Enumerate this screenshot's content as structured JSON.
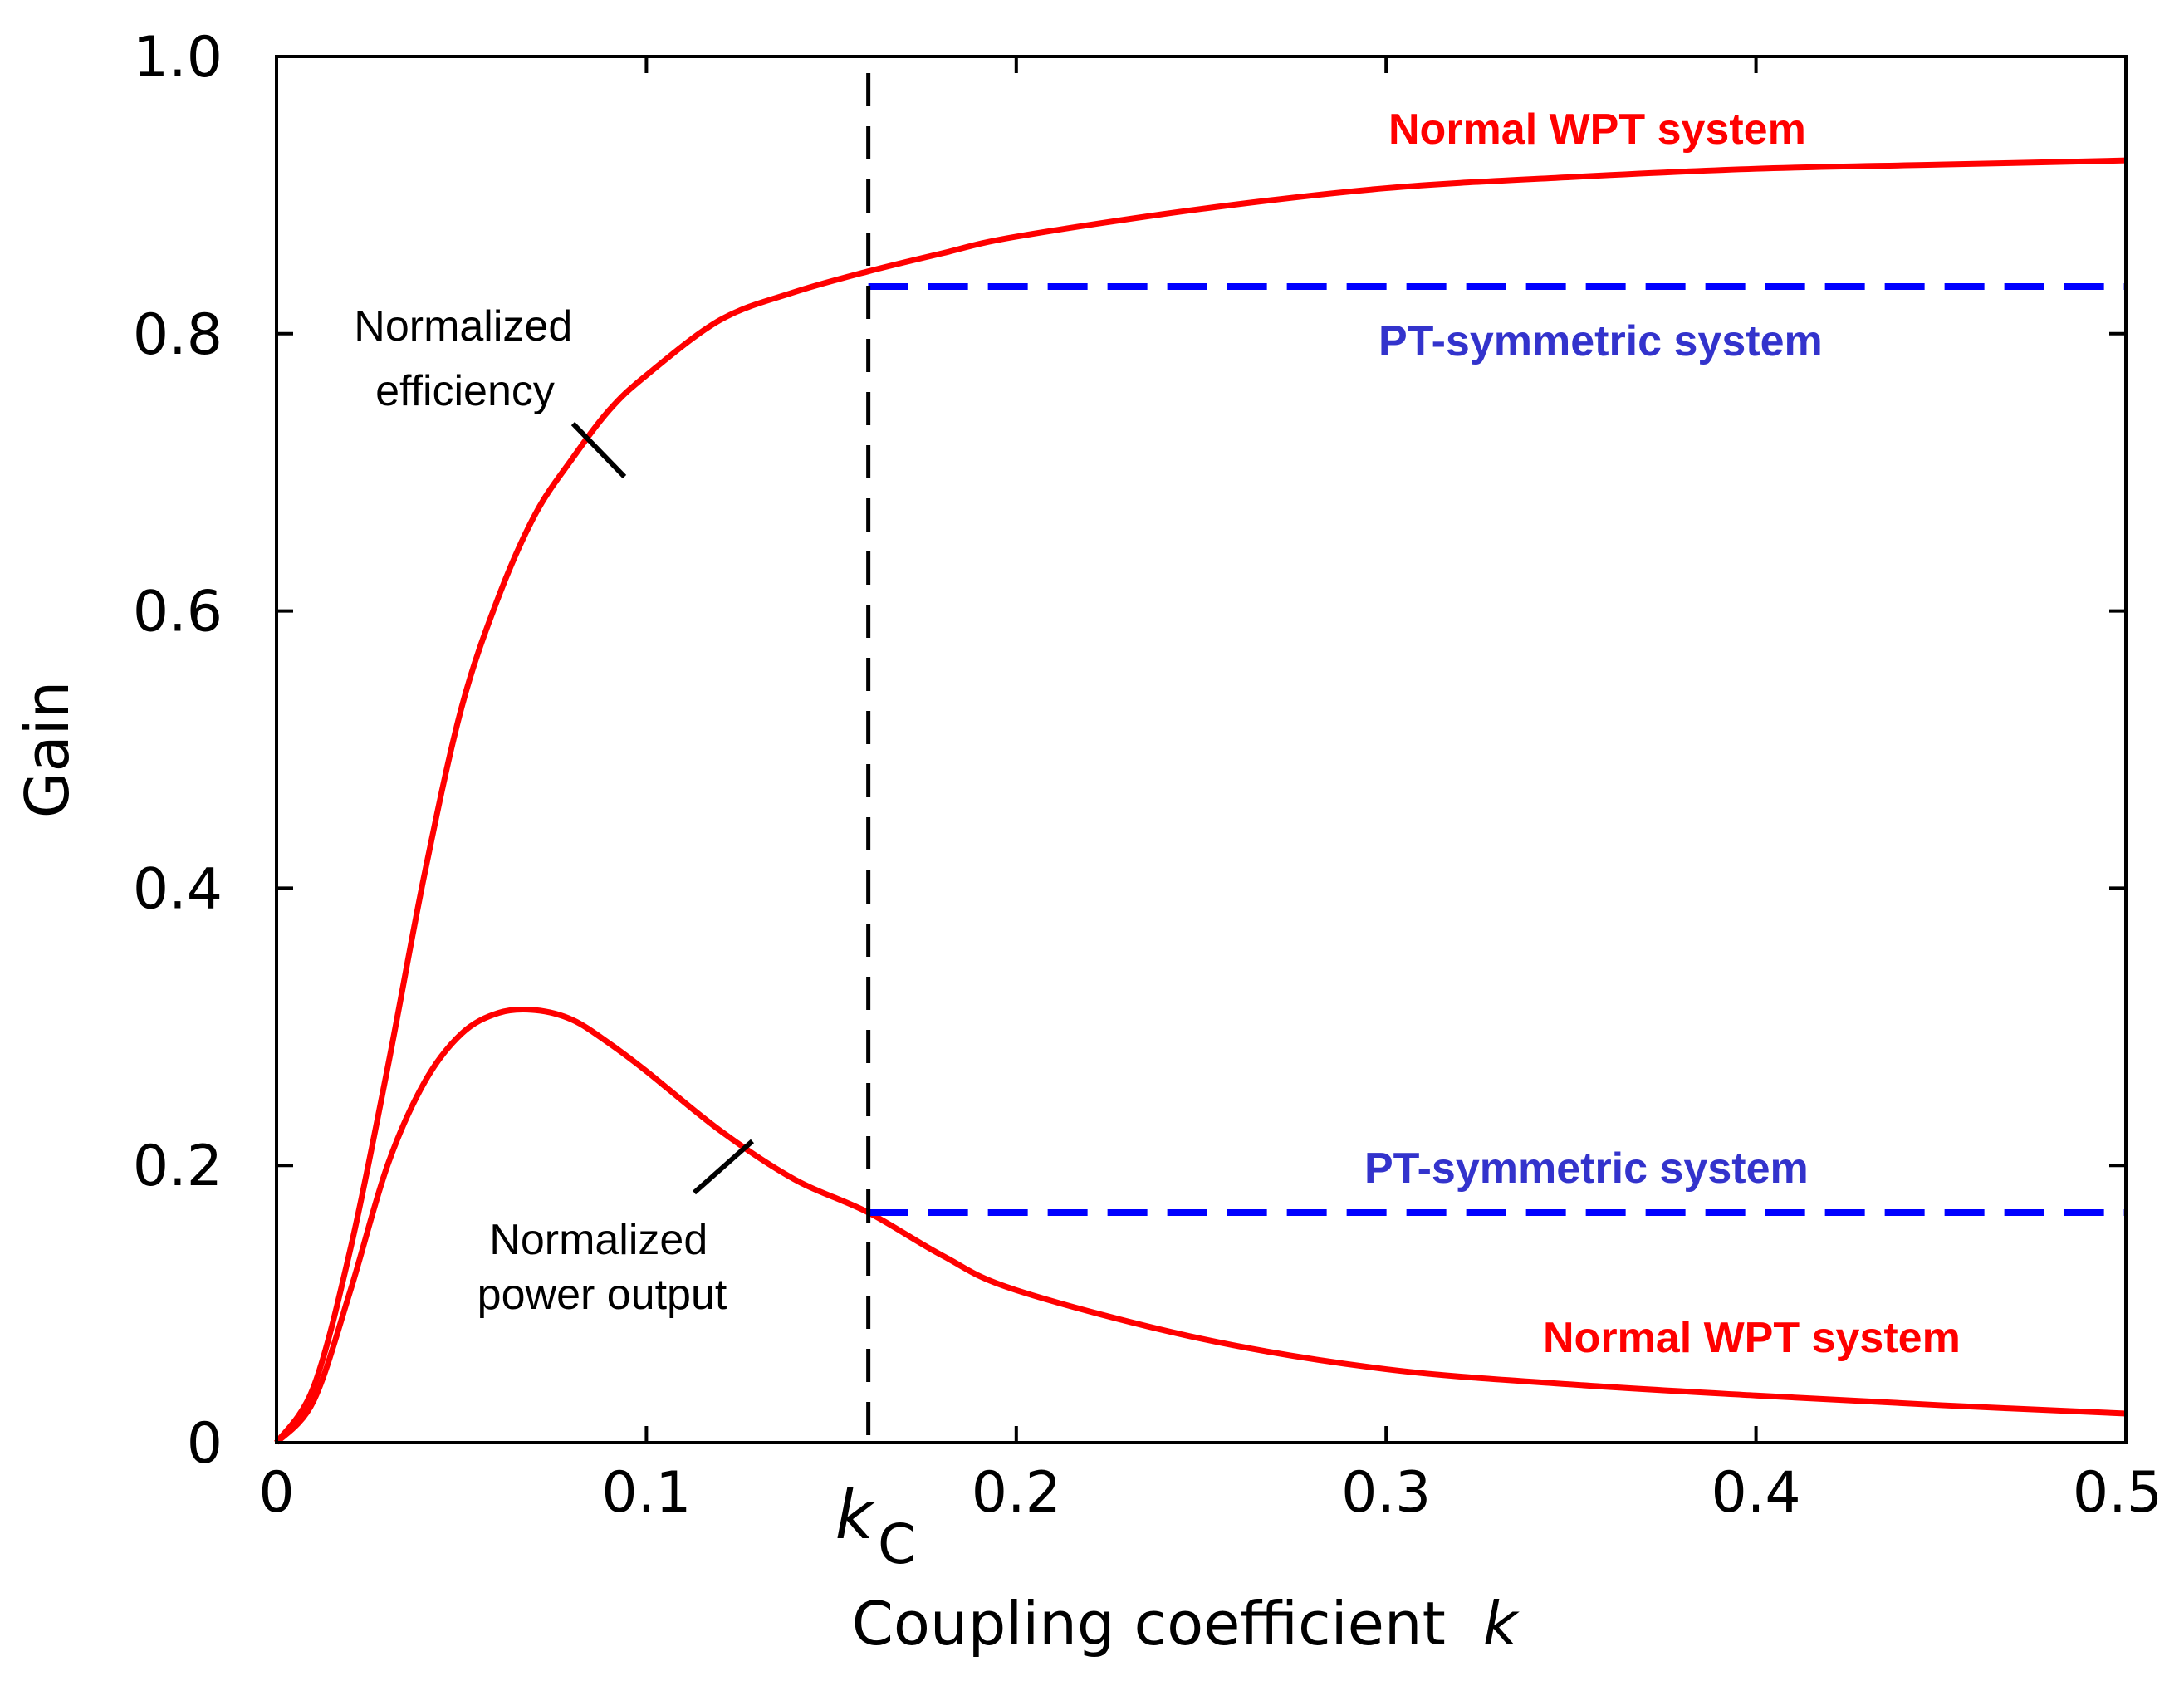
{
  "chart_data": {
    "type": "line",
    "xlabel": "Coupling coefficient",
    "xlabel_var": "k",
    "ylabel": "Gain",
    "xlim": [
      0,
      0.5
    ],
    "ylim": [
      0,
      1.0
    ],
    "x_ticks": [
      0,
      0.1,
      0.2,
      0.3,
      0.4,
      0.5
    ],
    "x_tick_labels": [
      "0",
      "0.1",
      "0.2",
      "0.3",
      "0.4",
      "0.5"
    ],
    "y_ticks": [
      0,
      0.2,
      0.4,
      0.6,
      0.8,
      1.0
    ],
    "y_tick_labels": [
      "0",
      "0.2",
      "0.4",
      "0.6",
      "0.8",
      "1.0"
    ],
    "grid": false,
    "critical_coupling": {
      "value": 0.16,
      "label_main": "k",
      "label_sub": "C",
      "style": "dashed",
      "color": "#000000"
    },
    "series": [
      {
        "color": "#ff0000",
        "style": "solid",
        "x": [
          0,
          0.01,
          0.02,
          0.03,
          0.04,
          0.05,
          0.06,
          0.07,
          0.08,
          0.09,
          0.1,
          0.12,
          0.14,
          0.16,
          0.18,
          0.2,
          0.25,
          0.3,
          0.35,
          0.4,
          0.45,
          0.5
        ],
        "values": [
          0,
          0.04,
          0.14,
          0.27,
          0.41,
          0.53,
          0.61,
          0.67,
          0.71,
          0.745,
          0.77,
          0.81,
          0.83,
          0.845,
          0.858,
          0.87,
          0.89,
          0.905,
          0.913,
          0.919,
          0.922,
          0.925
        ]
      },
      {
        "color": "#ff0000",
        "style": "solid",
        "x": [
          0,
          0.01,
          0.02,
          0.03,
          0.04,
          0.05,
          0.06,
          0.07,
          0.08,
          0.09,
          0.1,
          0.12,
          0.14,
          0.16,
          0.18,
          0.2,
          0.25,
          0.3,
          0.35,
          0.4,
          0.45,
          0.5
        ],
        "values": [
          0,
          0.03,
          0.11,
          0.2,
          0.26,
          0.295,
          0.31,
          0.312,
          0.305,
          0.288,
          0.268,
          0.225,
          0.19,
          0.166,
          0.135,
          0.11,
          0.075,
          0.053,
          0.042,
          0.034,
          0.027,
          0.021
        ]
      },
      {
        "color": "#0000ff",
        "style": "dashed",
        "x": [
          0.16,
          0.5
        ],
        "values": [
          0.834,
          0.834
        ]
      },
      {
        "color": "#0000ff",
        "style": "dashed",
        "x": [
          0.16,
          0.5
        ],
        "values": [
          0.166,
          0.166
        ]
      }
    ],
    "annotations": [
      {
        "lines": [
          "Normalized",
          "efficiency"
        ],
        "color": "#000000"
      },
      {
        "lines": [
          "Normalized",
          "power output"
        ],
        "color": "#000000"
      },
      {
        "text": "Normal WPT system",
        "color": "#ff0000"
      },
      {
        "text": "PT-symmetric system",
        "color": "#3333cc"
      },
      {
        "text": "PT-symmetric system",
        "color": "#3333cc"
      },
      {
        "text": "Normal WPT system",
        "color": "#ff0000"
      }
    ]
  }
}
